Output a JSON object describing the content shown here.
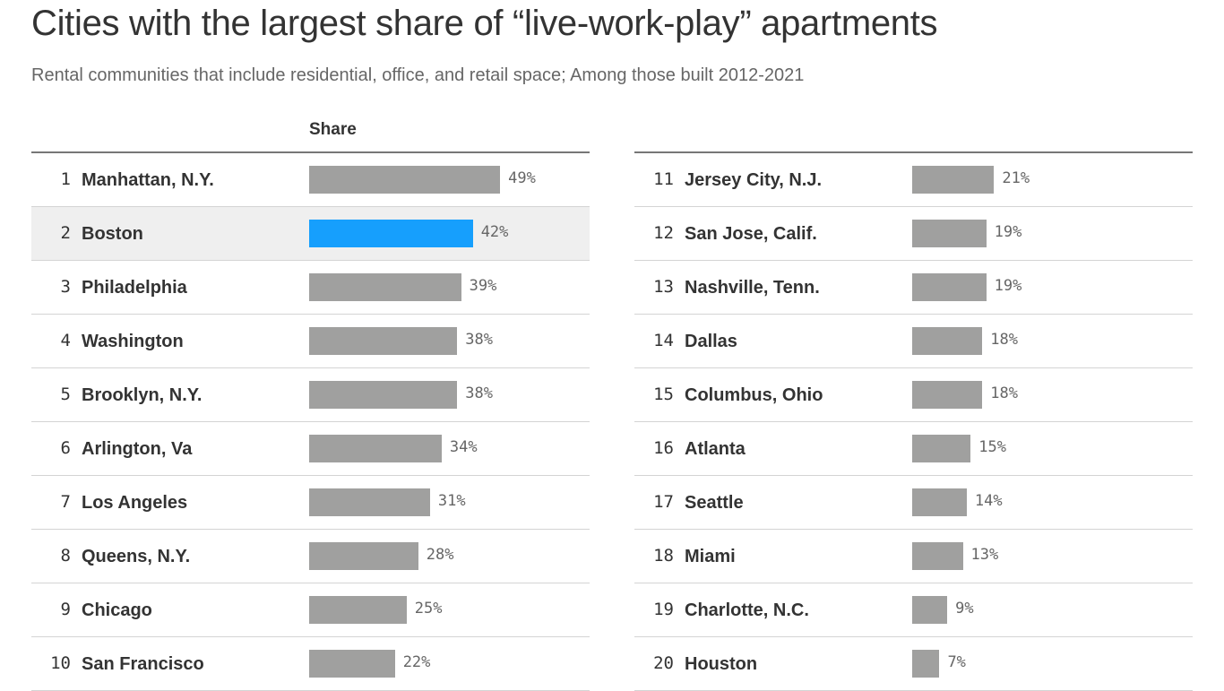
{
  "title": "Cities with the largest share of “live-work-play” apartments",
  "subtitle": "Rental communities that include residential, office, and retail space; Among those built 2012-2021",
  "chart_data": {
    "type": "bar",
    "orientation": "horizontal",
    "column_header": "Share",
    "highlight": "Boston",
    "colors": {
      "default": "#a0a09f",
      "highlight": "#169ffd"
    },
    "unit": "%",
    "ranks": [
      1,
      2,
      3,
      4,
      5,
      6,
      7,
      8,
      9,
      10,
      11,
      12,
      13,
      14,
      15,
      16,
      17,
      18,
      19,
      20
    ],
    "categories": [
      "Manhattan, N.Y.",
      "Boston",
      "Philadelphia",
      "Washington",
      "Brooklyn, N.Y.",
      "Arlington, Va",
      "Los Angeles",
      "Queens, N.Y.",
      "Chicago",
      "San Francisco",
      "Jersey City, N.J.",
      "San Jose, Calif.",
      "Nashville, Tenn.",
      "Dallas",
      "Columbus, Ohio",
      "Atlanta",
      "Seattle",
      "Miami",
      "Charlotte, N.C.",
      "Houston"
    ],
    "values": [
      49,
      42,
      39,
      38,
      38,
      34,
      31,
      28,
      25,
      22,
      21,
      19,
      19,
      18,
      18,
      15,
      14,
      13,
      9,
      7
    ],
    "labels": [
      "49%",
      "42%",
      "39%",
      "38%",
      "38%",
      "34%",
      "31%",
      "28%",
      "25%",
      "22%",
      "21%",
      "19%",
      "19%",
      "18%",
      "18%",
      "15%",
      "14%",
      "13%",
      "9%",
      "7%"
    ]
  }
}
